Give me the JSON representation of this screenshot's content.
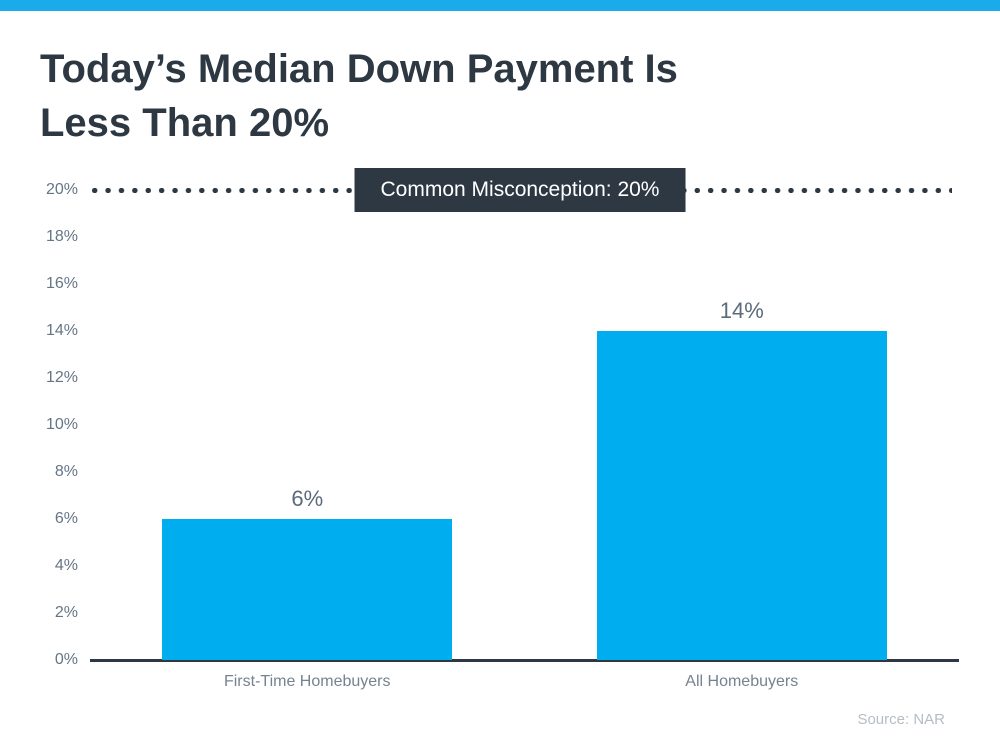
{
  "title": {
    "line1": "Today’s Median Down Payment Is",
    "line2": "Less Than 20%"
  },
  "chart_data": {
    "type": "bar",
    "title": "Today’s Median Down Payment Is Less Than 20%",
    "categories": [
      "First-Time Homebuyers",
      "All Homebuyers"
    ],
    "values": [
      6,
      14
    ],
    "value_labels": [
      "6%",
      "14%"
    ],
    "unit": "%",
    "y_axis": {
      "min": 0,
      "max": 20,
      "step": 2,
      "ticks": [
        {
          "value": 0,
          "label": "0%"
        },
        {
          "value": 2,
          "label": "2%"
        },
        {
          "value": 4,
          "label": "4%"
        },
        {
          "value": 6,
          "label": "6%"
        },
        {
          "value": 8,
          "label": "8%"
        },
        {
          "value": 10,
          "label": "10%"
        },
        {
          "value": 12,
          "label": "12%"
        },
        {
          "value": 14,
          "label": "14%"
        },
        {
          "value": 16,
          "label": "16%"
        },
        {
          "value": 18,
          "label": "18%"
        },
        {
          "value": 20,
          "label": "20%"
        }
      ]
    },
    "annotation": {
      "value": 20,
      "label": "Common Misconception: 20%",
      "style": "dotted-line"
    },
    "grid": false,
    "legend": false,
    "source": "Source: NAR",
    "colors": {
      "bar_fill": "#00aeef",
      "accent_stripe": "#1babeb",
      "annotation_bg": "#2d3843",
      "annotation_text": "#ffffff",
      "axis_line": "#2d3843",
      "title_text": "#2d3843",
      "tick_text": "#657585",
      "value_text": "#5b6b7b",
      "category_text": "#76828f",
      "source_text": "#b7bdc5"
    }
  }
}
